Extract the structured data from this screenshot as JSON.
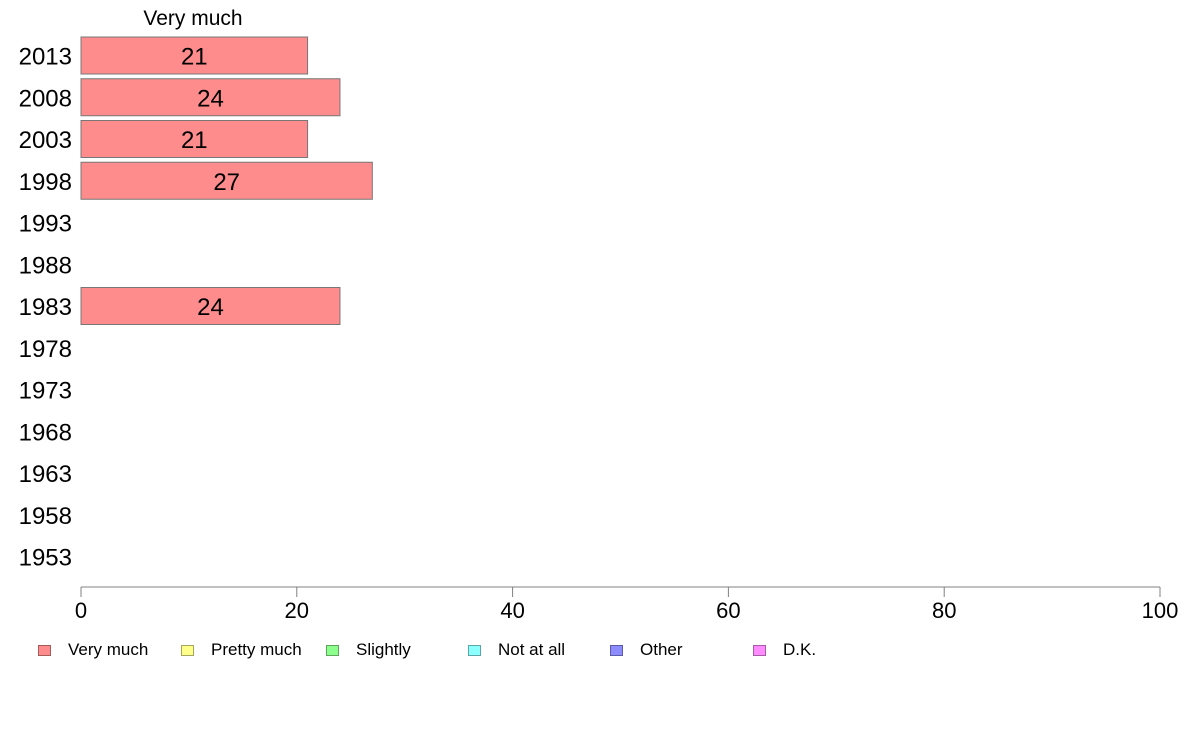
{
  "chart_data": {
    "type": "bar",
    "orientation": "horizontal",
    "stacked": true,
    "title": "",
    "panel_label": "Very much",
    "xlabel": "",
    "ylabel": "",
    "xlim": [
      0,
      100
    ],
    "x_ticks": [
      0,
      20,
      40,
      60,
      80,
      100
    ],
    "grid": false,
    "legend_position": "bottom",
    "categories": [
      "2013",
      "2008",
      "2003",
      "1998",
      "1993",
      "1988",
      "1983",
      "1978",
      "1973",
      "1968",
      "1963",
      "1958",
      "1953"
    ],
    "series": [
      {
        "name": "Very much",
        "color": "#ff8c8c",
        "values": [
          21,
          24,
          21,
          27,
          null,
          null,
          24,
          null,
          null,
          null,
          null,
          null,
          null
        ]
      },
      {
        "name": "Pretty much",
        "color": "#ffff8c",
        "values": [
          null,
          null,
          null,
          null,
          null,
          null,
          null,
          null,
          null,
          null,
          null,
          null,
          null
        ]
      },
      {
        "name": "Slightly",
        "color": "#8cff8c",
        "values": [
          null,
          null,
          null,
          null,
          null,
          null,
          null,
          null,
          null,
          null,
          null,
          null,
          null
        ]
      },
      {
        "name": "Not at all",
        "color": "#8cffff",
        "values": [
          null,
          null,
          null,
          null,
          null,
          null,
          null,
          null,
          null,
          null,
          null,
          null,
          null
        ]
      },
      {
        "name": "Other",
        "color": "#8c8cff",
        "values": [
          null,
          null,
          null,
          null,
          null,
          null,
          null,
          null,
          null,
          null,
          null,
          null,
          null
        ]
      },
      {
        "name": "D.K.",
        "color": "#ff8cff",
        "values": [
          null,
          null,
          null,
          null,
          null,
          null,
          null,
          null,
          null,
          null,
          null,
          null,
          null
        ]
      }
    ],
    "data_labels": [
      {
        "category": "2013",
        "text": "21"
      },
      {
        "category": "2008",
        "text": "24"
      },
      {
        "category": "2003",
        "text": "21"
      },
      {
        "category": "1998",
        "text": "27"
      },
      {
        "category": "1983",
        "text": "24"
      }
    ]
  }
}
